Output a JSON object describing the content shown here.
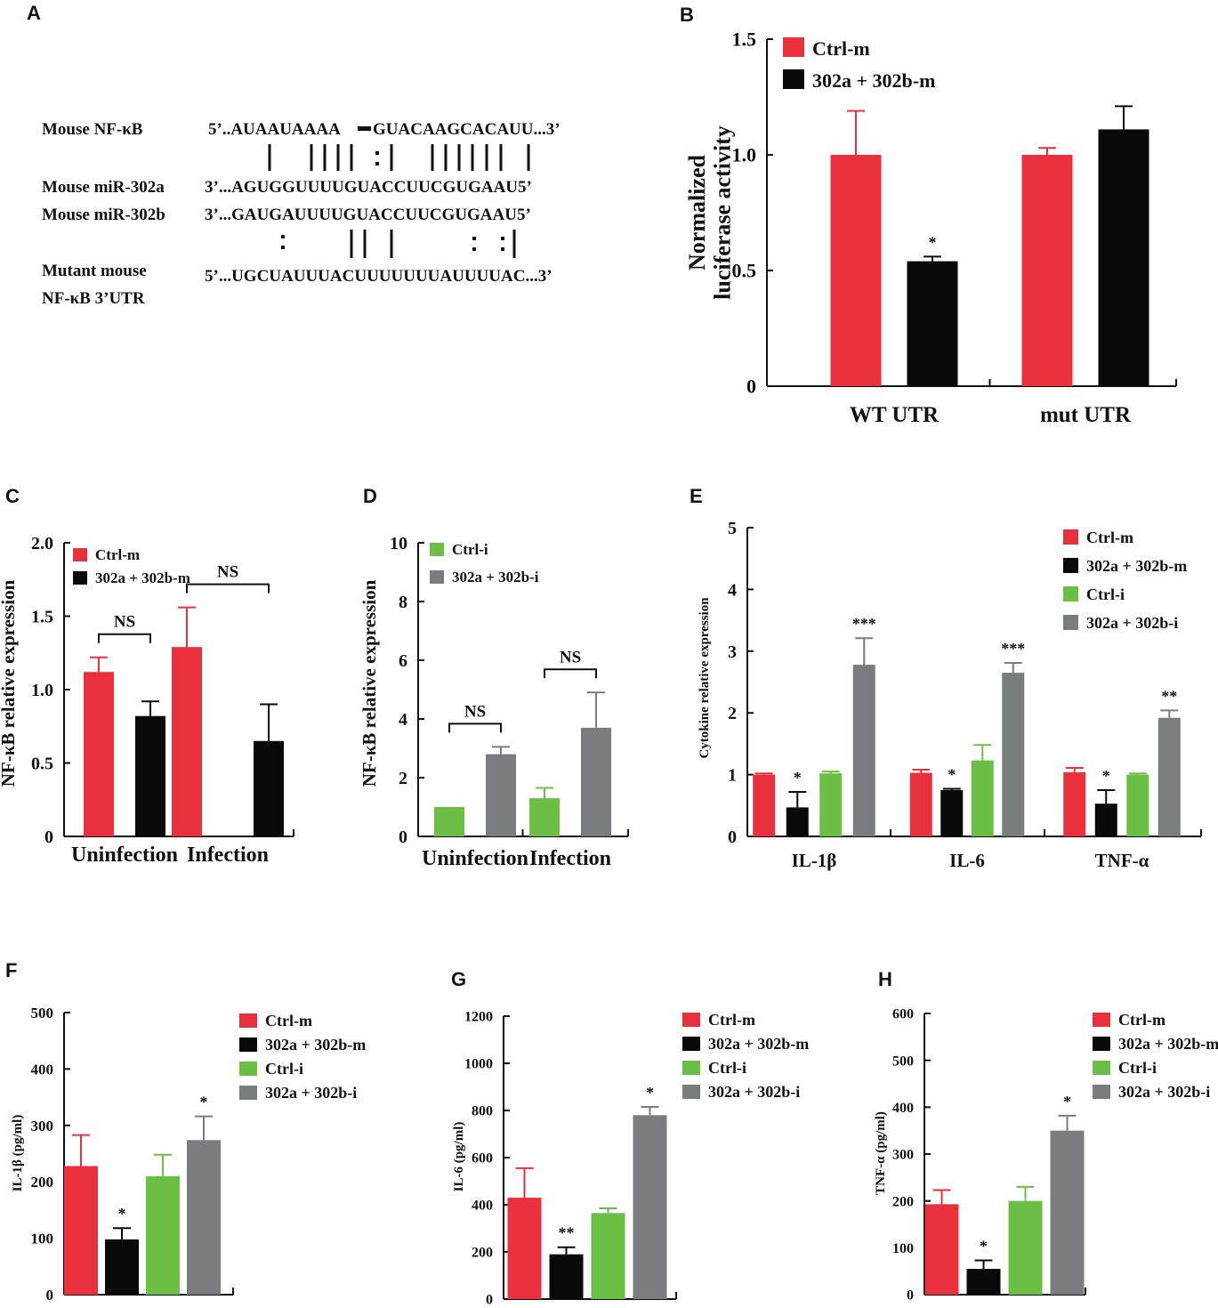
{
  "panels": {
    "A": "A",
    "B": "B",
    "C": "C",
    "D": "D",
    "E": "E",
    "F": "F",
    "G": "G",
    "H": "H"
  },
  "colors": {
    "red": "#e8313c",
    "black": "#0a0a0a",
    "green": "#6cbf45",
    "gray": "#7a7d7d"
  },
  "sequence": {
    "labels": [
      "Mouse NF-κB",
      "Mouse miR-302a",
      "Mouse miR-302b",
      "Mutant mouse",
      "NF-κB 3’UTR"
    ],
    "seq_nfkb_a": "5’..AUAAUAAAA",
    "seq_nfkb_b": "GUACAAGCACAUU...3’",
    "seq_302a": "3’...AGUGGUUUUGUACCUUCGUGAAU5’",
    "seq_302b": "3’...GAUGAUUUUGUACCUUCGUGAAU5’",
    "seq_mut": "5’...UGCUAUUUACUUUUUUUAUUUUAC...3’"
  },
  "chart_data": [
    {
      "id": "B",
      "type": "bar",
      "categories": [
        "WT UTR",
        "mut UTR"
      ],
      "series": [
        {
          "name": "Ctrl-m",
          "values": [
            1.0,
            1.0
          ],
          "errors": [
            0.19,
            0.03
          ]
        },
        {
          "name": "302a + 302b-m",
          "values": [
            0.54,
            1.11
          ],
          "errors": [
            0.02,
            0.1
          ]
        }
      ],
      "annotations": [
        {
          "category": 0,
          "series": 1,
          "text": "*"
        }
      ],
      "ylabel": "Normalized luciferase activity",
      "ylim": [
        0,
        1.5
      ],
      "yticks": [
        {
          "v": 0,
          "label": "0"
        },
        {
          "v": 0.5,
          "label": "0.5"
        },
        {
          "v": 1.0,
          "label": "1.0"
        },
        {
          "v": 1.5,
          "label": "1.5"
        }
      ],
      "legend": "top-left"
    },
    {
      "id": "C",
      "type": "bar",
      "categories": [
        "Uninfection",
        "Infection"
      ],
      "series": [
        {
          "name": "Ctrl-m",
          "values": [
            1.12,
            1.29
          ],
          "errors": [
            0.1,
            0.27
          ]
        },
        {
          "name": "302a + 302b-m",
          "values": [
            0.82,
            0.65
          ],
          "errors": [
            0.1,
            0.25
          ]
        }
      ],
      "brackets": [
        {
          "category": 0,
          "text": "NS"
        },
        {
          "category": 1,
          "text": "NS"
        }
      ],
      "ylabel": "NF-κB relative expression",
      "ylim": [
        0,
        2.0
      ],
      "yticks": [
        {
          "v": 0,
          "label": "0"
        },
        {
          "v": 0.5,
          "label": "0.5"
        },
        {
          "v": 1.0,
          "label": "1.0"
        },
        {
          "v": 1.5,
          "label": "1.5"
        },
        {
          "v": 2.0,
          "label": "2.0"
        }
      ],
      "legend": "top-left"
    },
    {
      "id": "D",
      "type": "bar",
      "categories": [
        "Uninfection",
        "Infection"
      ],
      "series": [
        {
          "name": "Ctrl-i",
          "values": [
            1.0,
            1.3
          ],
          "errors": [
            0,
            0.35
          ]
        },
        {
          "name": "302a + 302b-i",
          "values": [
            2.8,
            3.7
          ],
          "errors": [
            0.25,
            1.2
          ]
        }
      ],
      "brackets": [
        {
          "category": 0,
          "text": "NS"
        },
        {
          "category": 1,
          "text": "NS"
        }
      ],
      "ylabel": "NF-κB relative expression",
      "ylim": [
        0,
        10
      ],
      "yticks": [
        {
          "v": 0,
          "label": "0"
        },
        {
          "v": 2,
          "label": "2"
        },
        {
          "v": 4,
          "label": "4"
        },
        {
          "v": 6,
          "label": "6"
        },
        {
          "v": 8,
          "label": "8"
        },
        {
          "v": 10,
          "label": "10"
        }
      ],
      "legend": "top-left"
    },
    {
      "id": "E",
      "type": "bar",
      "categories": [
        "IL-1β",
        "IL-6",
        "TNF-α"
      ],
      "series": [
        {
          "name": "Ctrl-m",
          "values": [
            1.0,
            1.03,
            1.04
          ],
          "errors": [
            0.02,
            0.05,
            0.07
          ]
        },
        {
          "name": "302a + 302b-m",
          "values": [
            0.47,
            0.75,
            0.53
          ],
          "errors": [
            0.25,
            0.02,
            0.22
          ]
        },
        {
          "name": "Ctrl-i",
          "values": [
            1.02,
            1.23,
            1.0
          ],
          "errors": [
            0.03,
            0.25,
            0.02
          ]
        },
        {
          "name": "302a + 302b-i",
          "values": [
            2.78,
            2.65,
            1.92
          ],
          "errors": [
            0.43,
            0.16,
            0.12
          ]
        }
      ],
      "annotations": [
        {
          "category": 0,
          "series": 1,
          "text": "*"
        },
        {
          "category": 0,
          "series": 3,
          "text": "***"
        },
        {
          "category": 1,
          "series": 1,
          "text": "*"
        },
        {
          "category": 1,
          "series": 3,
          "text": "***"
        },
        {
          "category": 2,
          "series": 1,
          "text": "*"
        },
        {
          "category": 2,
          "series": 3,
          "text": "**"
        }
      ],
      "ylabel": "Cytokine relative expression",
      "ylim": [
        0,
        5
      ],
      "yticks": [
        {
          "v": 0,
          "label": "0"
        },
        {
          "v": 1,
          "label": "1"
        },
        {
          "v": 2,
          "label": "2"
        },
        {
          "v": 3,
          "label": "3"
        },
        {
          "v": 4,
          "label": "4"
        },
        {
          "v": 5,
          "label": "5"
        }
      ],
      "legend": "top-right"
    },
    {
      "id": "F",
      "type": "bar",
      "categories": [
        ""
      ],
      "series": [
        {
          "name": "Ctrl-m",
          "values": [
            228
          ],
          "errors": [
            55
          ]
        },
        {
          "name": "302a + 302b-m",
          "values": [
            98
          ],
          "errors": [
            20
          ]
        },
        {
          "name": "Ctrl-i",
          "values": [
            210
          ],
          "errors": [
            38
          ]
        },
        {
          "name": "302a + 302b-i",
          "values": [
            274
          ],
          "errors": [
            42
          ]
        }
      ],
      "annotations": [
        {
          "category": 0,
          "series": 1,
          "text": "*"
        },
        {
          "category": 0,
          "series": 3,
          "text": "*"
        }
      ],
      "ylabel": "IL-1β (pg/ml)",
      "ylim": [
        0,
        500
      ],
      "yticks": [
        {
          "v": 0,
          "label": "0"
        },
        {
          "v": 100,
          "label": "100"
        },
        {
          "v": 200,
          "label": "200"
        },
        {
          "v": 300,
          "label": "300"
        },
        {
          "v": 400,
          "label": "400"
        },
        {
          "v": 500,
          "label": "500"
        }
      ],
      "legend": "right"
    },
    {
      "id": "G",
      "type": "bar",
      "categories": [
        ""
      ],
      "series": [
        {
          "name": "Ctrl-m",
          "values": [
            430
          ],
          "errors": [
            125
          ]
        },
        {
          "name": "302a + 302b-m",
          "values": [
            190
          ],
          "errors": [
            30
          ]
        },
        {
          "name": "Ctrl-i",
          "values": [
            365
          ],
          "errors": [
            20
          ]
        },
        {
          "name": "302a + 302b-i",
          "values": [
            780
          ],
          "errors": [
            35
          ]
        }
      ],
      "annotations": [
        {
          "category": 0,
          "series": 1,
          "text": "**"
        },
        {
          "category": 0,
          "series": 3,
          "text": "*"
        }
      ],
      "ylabel": "IL-6 (pg/ml)",
      "ylim": [
        0,
        1200
      ],
      "yticks": [
        {
          "v": 0,
          "label": "0"
        },
        {
          "v": 200,
          "label": "200"
        },
        {
          "v": 400,
          "label": "400"
        },
        {
          "v": 600,
          "label": "600"
        },
        {
          "v": 800,
          "label": "800"
        },
        {
          "v": 1000,
          "label": "1000"
        },
        {
          "v": 1200,
          "label": "1200"
        }
      ],
      "legend": "right"
    },
    {
      "id": "H",
      "type": "bar",
      "categories": [
        ""
      ],
      "series": [
        {
          "name": "Ctrl-m",
          "values": [
            193
          ],
          "errors": [
            30
          ]
        },
        {
          "name": "302a + 302b-m",
          "values": [
            55
          ],
          "errors": [
            18
          ]
        },
        {
          "name": "Ctrl-i",
          "values": [
            200
          ],
          "errors": [
            30
          ]
        },
        {
          "name": "302a + 302b-i",
          "values": [
            350
          ],
          "errors": [
            32
          ]
        }
      ],
      "annotations": [
        {
          "category": 0,
          "series": 1,
          "text": "*"
        },
        {
          "category": 0,
          "series": 3,
          "text": "*"
        }
      ],
      "ylabel": "TNF-α (pg/ml)",
      "ylim": [
        0,
        600
      ],
      "yticks": [
        {
          "v": 0,
          "label": "0"
        },
        {
          "v": 100,
          "label": "100"
        },
        {
          "v": 200,
          "label": "200"
        },
        {
          "v": 300,
          "label": "300"
        },
        {
          "v": 400,
          "label": "400"
        },
        {
          "v": 500,
          "label": "500"
        },
        {
          "v": 600,
          "label": "600"
        }
      ],
      "legend": "right"
    }
  ]
}
